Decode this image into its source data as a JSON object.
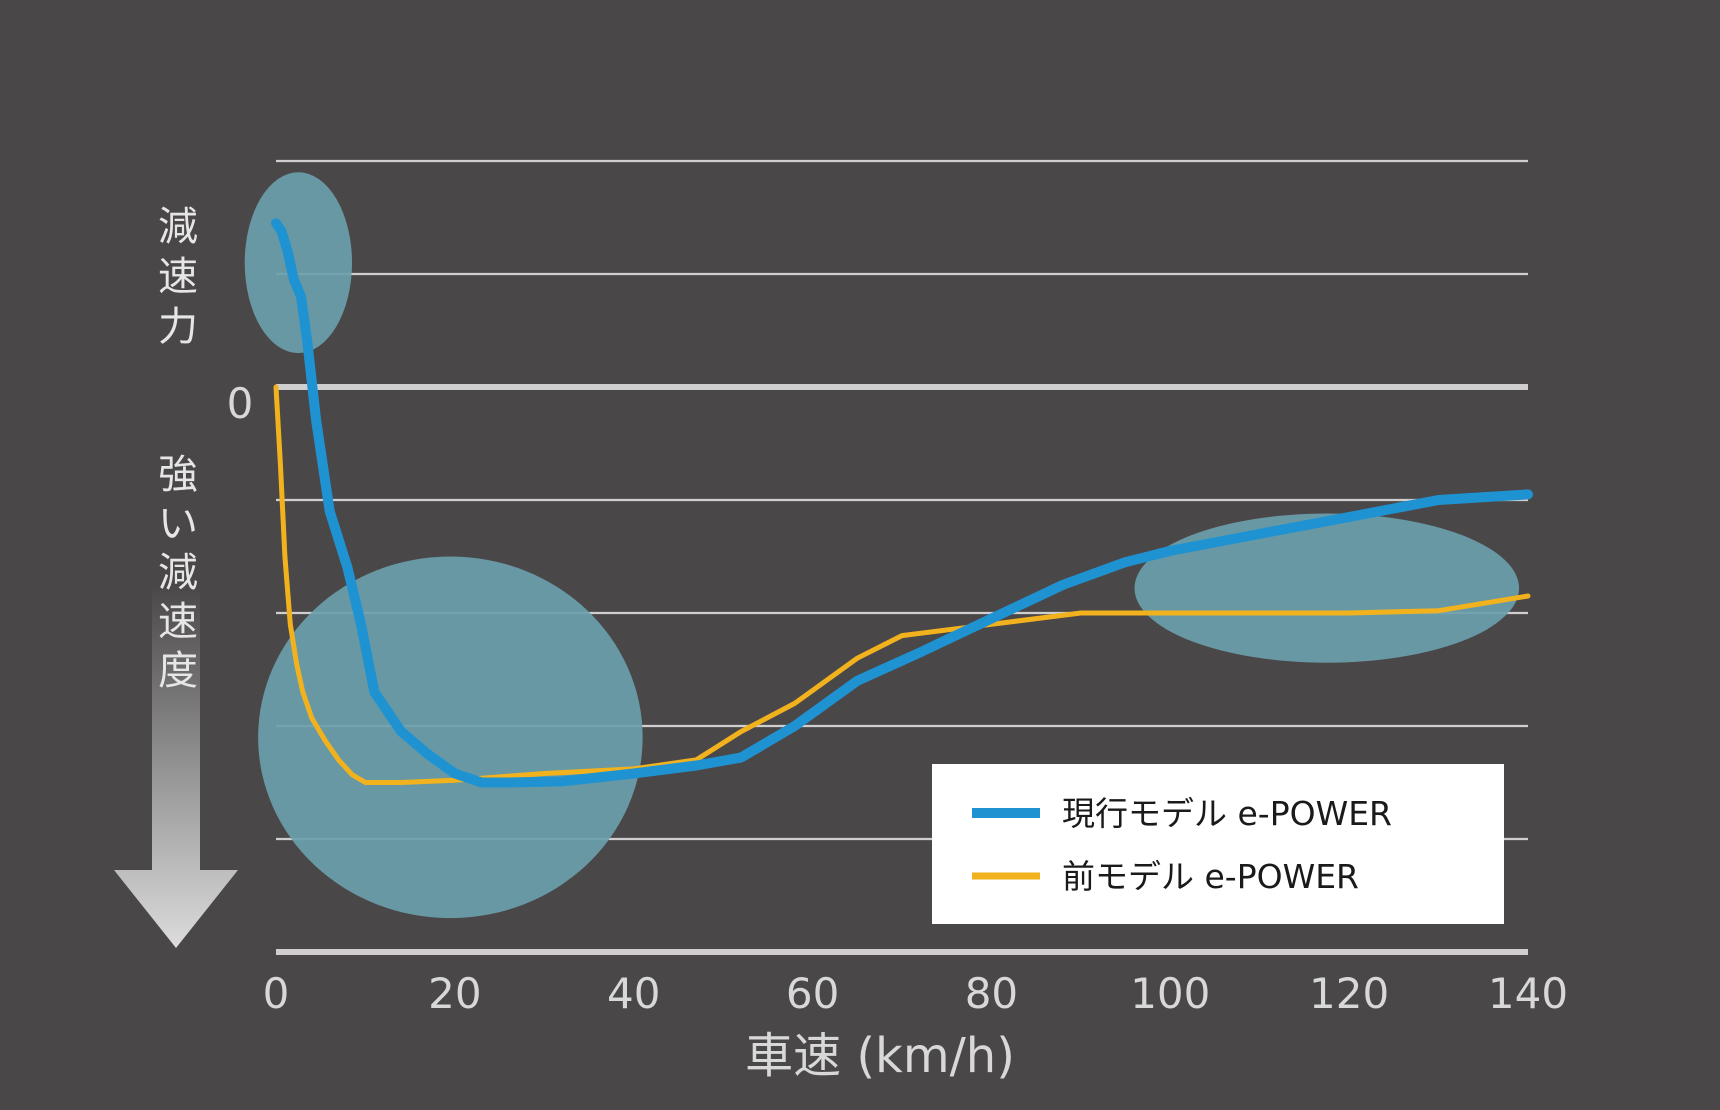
{
  "chart_data": {
    "type": "line",
    "title": "",
    "xlabel": "車速 (km/h)",
    "y_upper_label": "減速力",
    "y_zero_label": "0",
    "y_lower_label": "強い減速度",
    "xlim": [
      0,
      140
    ],
    "ylim": [
      -5,
      2
    ],
    "x_ticks": [
      "0",
      "20",
      "40",
      "60",
      "80",
      "100",
      "120",
      "140"
    ],
    "y_grid": [
      2,
      1,
      0,
      -1,
      -2,
      -3,
      -4,
      -5
    ],
    "grid": true,
    "legend_position": "bottom-right",
    "series": [
      {
        "name": "現行モデル e-POWER",
        "color": "#1f93d2",
        "x": [
          0,
          0.6,
          1.3,
          2,
          2.8,
          3.5,
          4.5,
          6,
          8,
          9.5,
          11,
          14,
          17,
          20,
          23,
          26,
          32,
          40,
          47,
          52,
          58,
          65,
          72,
          80,
          88,
          95,
          100,
          110,
          120,
          130,
          140
        ],
        "y": [
          1.45,
          1.38,
          1.2,
          0.95,
          0.8,
          0.4,
          -0.3,
          -1.1,
          -1.6,
          -2.1,
          -2.7,
          -3.05,
          -3.25,
          -3.42,
          -3.5,
          -3.5,
          -3.49,
          -3.42,
          -3.35,
          -3.28,
          -3.0,
          -2.6,
          -2.35,
          -2.05,
          -1.75,
          -1.55,
          -1.45,
          -1.3,
          -1.15,
          -1.0,
          -0.95
        ]
      },
      {
        "name": "前モデル e-POWER",
        "color": "#f2b21e",
        "x": [
          0,
          0.5,
          1,
          1.6,
          2.3,
          3,
          4,
          5.5,
          7,
          8.5,
          10,
          14,
          20,
          25,
          30,
          40,
          47,
          52,
          58,
          65,
          70,
          80,
          90,
          100,
          110,
          120,
          130,
          140
        ],
        "y": [
          0,
          -0.7,
          -1.5,
          -2.1,
          -2.45,
          -2.7,
          -2.93,
          -3.13,
          -3.3,
          -3.43,
          -3.5,
          -3.5,
          -3.48,
          -3.45,
          -3.42,
          -3.38,
          -3.3,
          -3.05,
          -2.8,
          -2.4,
          -2.2,
          -2.1,
          -2.0,
          -2.0,
          -2.0,
          -2.0,
          -1.98,
          -1.85
        ]
      }
    ],
    "annotations": [
      {
        "shape": "ellipse",
        "cx": 2.5,
        "cy": 1.1,
        "rx": 6,
        "ry": 0.8
      },
      {
        "shape": "ellipse",
        "cx": 19.5,
        "cy": -3.1,
        "rx": 21.5,
        "ry": 1.6
      },
      {
        "shape": "ellipse",
        "cx": 117.5,
        "cy": -1.78,
        "rx": 21.5,
        "ry": 0.66
      }
    ]
  },
  "colors": {
    "background": "#4a4748",
    "grid": "#cfcfcf",
    "highlight": "#6a9fad"
  }
}
